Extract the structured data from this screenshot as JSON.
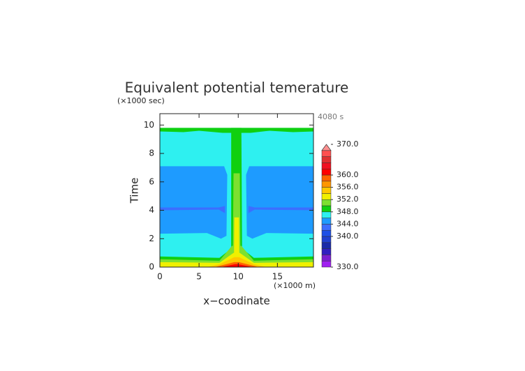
{
  "chart_data": {
    "type": "contour",
    "title": "Equivalent potential temerature",
    "ylabel": "Time",
    "yunit": "(×1000 sec)",
    "xlabel": "x−coodinate",
    "xunit": "(×1000 m)",
    "annotation": "4080 s",
    "xlim": [
      0,
      19.6
    ],
    "ylim": [
      0,
      10.8
    ],
    "xticks": [
      0,
      5,
      10,
      15
    ],
    "yticks": [
      0,
      2,
      4,
      6,
      8,
      10
    ],
    "regions": [
      {
        "level": 346,
        "points": [
          [
            0,
            0
          ],
          [
            19.6,
            0
          ],
          [
            19.6,
            9.8
          ],
          [
            0,
            9.8
          ]
        ]
      },
      {
        "level": 344,
        "points": [
          [
            0,
            2.35
          ],
          [
            6,
            2.4
          ],
          [
            7.8,
            2.0
          ],
          [
            8.5,
            2.2
          ],
          [
            8.6,
            6.5
          ],
          [
            8.2,
            7.1
          ],
          [
            0,
            7.1
          ]
        ]
      },
      {
        "level": 344,
        "points": [
          [
            19.6,
            2.35
          ],
          [
            13.6,
            2.4
          ],
          [
            11.8,
            2.0
          ],
          [
            11.1,
            2.2
          ],
          [
            11.0,
            6.5
          ],
          [
            11.4,
            7.1
          ],
          [
            19.6,
            7.1
          ]
        ]
      },
      {
        "level": 342,
        "points": [
          [
            0,
            4.0
          ],
          [
            7.5,
            4.05
          ],
          [
            8.3,
            3.8
          ],
          [
            8.3,
            4.3
          ],
          [
            7.5,
            4.2
          ],
          [
            0,
            4.2
          ]
        ]
      },
      {
        "level": 342,
        "points": [
          [
            19.6,
            4.0
          ],
          [
            12.1,
            4.05
          ],
          [
            11.3,
            3.8
          ],
          [
            11.3,
            4.3
          ],
          [
            12.1,
            4.2
          ],
          [
            19.6,
            4.2
          ]
        ]
      },
      {
        "level": 348,
        "points": [
          [
            9.1,
            0
          ],
          [
            10.5,
            0
          ],
          [
            10.4,
            9.8
          ],
          [
            9.1,
            9.8
          ]
        ]
      },
      {
        "level": 348,
        "points": [
          [
            0,
            9.55
          ],
          [
            3,
            9.5
          ],
          [
            5,
            9.6
          ],
          [
            8,
            9.45
          ],
          [
            11.6,
            9.45
          ],
          [
            14,
            9.6
          ],
          [
            17,
            9.5
          ],
          [
            19.6,
            9.55
          ],
          [
            19.6,
            9.8
          ],
          [
            0,
            9.8
          ]
        ]
      },
      {
        "level": 348,
        "points": [
          [
            0,
            0
          ],
          [
            19.6,
            0
          ],
          [
            19.6,
            0.75
          ],
          [
            12,
            0.65
          ],
          [
            10.5,
            1.3
          ],
          [
            9.1,
            1.3
          ],
          [
            7.6,
            0.65
          ],
          [
            0,
            0.75
          ]
        ]
      },
      {
        "level": 350,
        "points": [
          [
            0,
            0
          ],
          [
            19.6,
            0
          ],
          [
            19.6,
            0.55
          ],
          [
            12,
            0.45
          ],
          [
            10.4,
            1.5
          ],
          [
            9.2,
            1.5
          ],
          [
            7.6,
            0.45
          ],
          [
            0,
            0.55
          ]
        ]
      },
      {
        "level": 350,
        "points": [
          [
            9.3,
            0
          ],
          [
            10.3,
            0
          ],
          [
            10.2,
            6.6
          ],
          [
            9.4,
            6.6
          ]
        ]
      },
      {
        "level": 352,
        "points": [
          [
            0,
            0
          ],
          [
            19.6,
            0
          ],
          [
            19.6,
            0.35
          ],
          [
            12,
            0.3
          ],
          [
            10.2,
            1.0
          ],
          [
            9.4,
            1.0
          ],
          [
            7.6,
            0.3
          ],
          [
            0,
            0.35
          ]
        ]
      },
      {
        "level": 352,
        "points": [
          [
            9.45,
            0
          ],
          [
            10.15,
            0
          ],
          [
            10.1,
            3.5
          ],
          [
            9.5,
            3.5
          ]
        ]
      },
      {
        "level": 354,
        "points": [
          [
            6,
            0
          ],
          [
            13.6,
            0
          ],
          [
            12,
            0.2
          ],
          [
            10.1,
            0.7
          ],
          [
            9.5,
            0.7
          ],
          [
            7.6,
            0.2
          ]
        ]
      },
      {
        "level": 358,
        "points": [
          [
            7,
            0
          ],
          [
            12.6,
            0
          ],
          [
            10.1,
            0.35
          ],
          [
            9.5,
            0.35
          ]
        ]
      },
      {
        "level": 360,
        "points": [
          [
            7.8,
            0
          ],
          [
            11.8,
            0
          ],
          [
            10,
            0.2
          ],
          [
            9.6,
            0.2
          ]
        ]
      }
    ],
    "colorbar": {
      "lim": [
        330,
        370
      ],
      "bins": [
        330,
        332,
        334,
        336,
        338,
        340,
        342,
        344,
        346,
        348,
        350,
        352,
        354,
        356,
        358,
        360,
        362,
        364,
        366,
        368
      ],
      "colors": [
        "#a020f0",
        "#7b1fd0",
        "#3020c0",
        "#1a2aa8",
        "#2040d0",
        "#1e50e6",
        "#3c6eff",
        "#1e9bff",
        "#2ef0f0",
        "#10d010",
        "#7de030",
        "#f0f000",
        "#ffc800",
        "#ff9600",
        "#ff6400",
        "#ff0000",
        "#f01020",
        "#e03030",
        "#ff5050"
      ],
      "over_color": "#ff9090",
      "ticks": [
        {
          "value": 330,
          "label": "330.0"
        },
        {
          "value": 340,
          "label": "340.0"
        },
        {
          "value": 344,
          "label": "344.0"
        },
        {
          "value": 348,
          "label": "348.0"
        },
        {
          "value": 352,
          "label": "352.0"
        },
        {
          "value": 356,
          "label": "356.0"
        },
        {
          "value": 360,
          "label": "360.0"
        },
        {
          "value": 370,
          "label": "370.0"
        }
      ]
    }
  }
}
